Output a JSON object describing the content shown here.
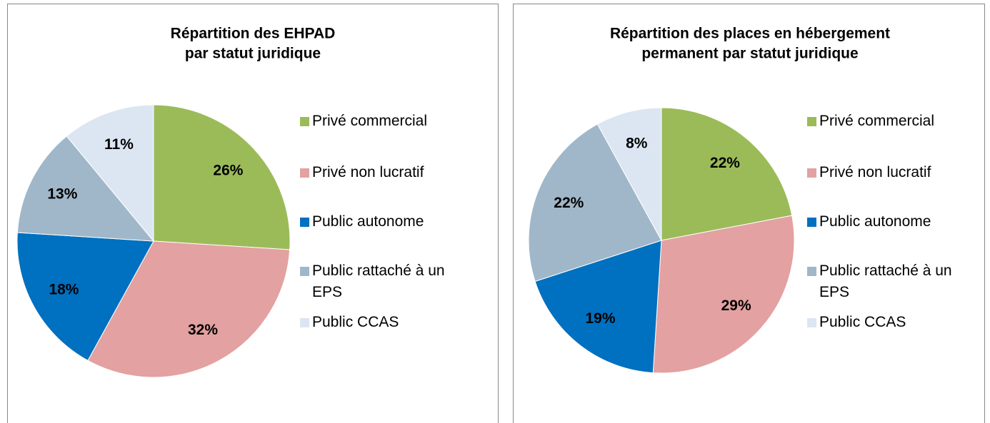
{
  "chart_data": [
    {
      "type": "pie",
      "title": [
        "Répartition des EHPAD",
        "par statut juridique"
      ],
      "categories": [
        "Privé commercial",
        "Privé non lucratif",
        "Public autonome",
        "Public rattaché à un EPS",
        "Public CCAS"
      ],
      "values": [
        26,
        32,
        18,
        13,
        11
      ],
      "value_labels": [
        "26%",
        "32%",
        "18%",
        "13%",
        "11%"
      ],
      "colors": [
        "#9bbb59",
        "#e3a1a1",
        "#0070c0",
        "#a0b7c9",
        "#dce6f2"
      ]
    },
    {
      "type": "pie",
      "title": [
        "Répartition des places en hébergement",
        "permanent par statut juridique"
      ],
      "categories": [
        "Privé commercial",
        "Privé non lucratif",
        "Public autonome",
        "Public rattaché à un EPS",
        "Public CCAS"
      ],
      "values": [
        22,
        29,
        19,
        22,
        8
      ],
      "value_labels": [
        "22%",
        "29%",
        "19%",
        "22%",
        "8%"
      ],
      "colors": [
        "#9bbb59",
        "#e3a1a1",
        "#0070c0",
        "#a0b7c9",
        "#dce6f2"
      ]
    }
  ]
}
